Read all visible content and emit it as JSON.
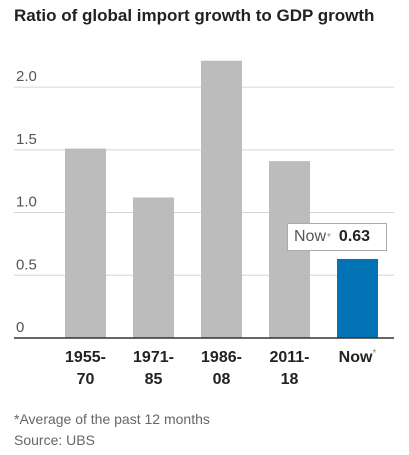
{
  "chart_data": {
    "type": "bar",
    "title": "Ratio of global import growth to GDP growth",
    "categories": [
      [
        "1955-",
        "70"
      ],
      [
        "1971-",
        "85"
      ],
      [
        "1986-",
        "08"
      ],
      [
        "2011-",
        "18"
      ],
      [
        "Now*"
      ]
    ],
    "values": [
      1.51,
      1.12,
      2.21,
      1.41,
      0.63
    ],
    "highlight_index": 4,
    "colors": {
      "bar": "#bcbcbc",
      "highlight": "#0274b6",
      "grid": "#d6d6d6",
      "axis": "#333333"
    },
    "ylim": [
      0,
      2.2
    ],
    "yticks": [
      0,
      0.5,
      1.0,
      1.5,
      2.0
    ],
    "ytick_labels": [
      "0",
      "0.5",
      "1.0",
      "1.5",
      "2.0"
    ],
    "grid": true,
    "annotation": {
      "label": "Now",
      "marker": "*",
      "value": "0.63"
    }
  },
  "footnote": "*Average of the past 12 months",
  "source": "Source: UBS"
}
